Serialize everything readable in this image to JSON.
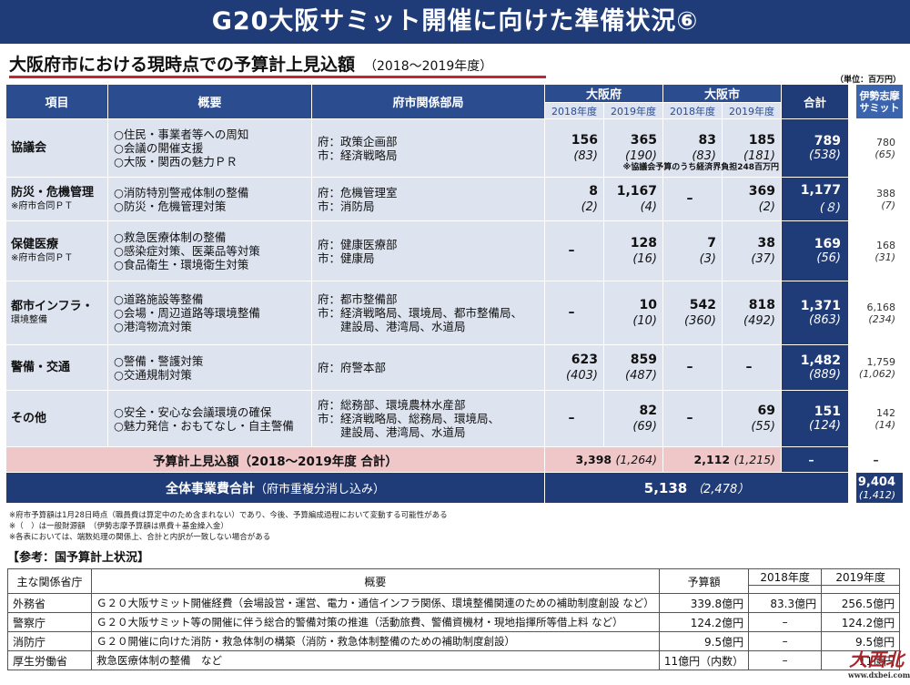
{
  "title": "G20大阪サミット開催に向けた準備状況⑥",
  "subtitle": "大阪府市における現時点での予算計上見込額",
  "period": "（2018～2019年度）",
  "unit": "（単位：百万円）",
  "headers": {
    "item": "項目",
    "overview": "概要",
    "dept": "府市関係部局",
    "pref": "大阪府",
    "city": "大阪市",
    "total": "合計",
    "ise_line1": "伊勢志摩",
    "ise_line2": "サミット",
    "y2018": "2018年度",
    "y2019": "2019年度"
  },
  "rows": [
    {
      "item": "協議会",
      "note": "",
      "desc": [
        "○住民・事業者等への周知",
        "○会議の開催支援",
        "○大阪・関西の魅力ＰＲ"
      ],
      "dept": [
        "府：政策企画部",
        "市：経済戦略局"
      ],
      "p18": "156",
      "p18s": "(83)",
      "p19": "365",
      "p19s": "(190)",
      "c18": "83",
      "c18s": "(83)",
      "c19": "185",
      "c19s": "(181)",
      "tot": "789",
      "tots": "(538)",
      "ise": "780",
      "ises": "(65)",
      "extra": "※協議会予算のうち経済界負担248百万円"
    },
    {
      "item": "防災・危機管理",
      "note": "※府市合同ＰＴ",
      "desc": [
        "○消防特別警戒体制の整備",
        "○防災・危機管理対策"
      ],
      "dept": [
        "府：危機管理室",
        "市：消防局"
      ],
      "p18": "8",
      "p18s": "(2)",
      "p19": "1,167",
      "p19s": "(4)",
      "c18": "–",
      "c18s": "",
      "c19": "369",
      "c19s": "(2)",
      "tot": "1,177",
      "tots": "(８)",
      "ise": "388",
      "ises": "(7)",
      "extra": ""
    },
    {
      "item": "保健医療",
      "note": "※府市合同ＰＴ",
      "desc": [
        "○救急医療体制の整備",
        "○感染症対策、医薬品等対策",
        "○食品衛生・環境衛生対策"
      ],
      "dept": [
        "府：健康医療部",
        "市：健康局"
      ],
      "p18": "–",
      "p18s": "",
      "p19": "128",
      "p19s": "(16)",
      "c18": "7",
      "c18s": "(3)",
      "c19": "38",
      "c19s": "(37)",
      "tot": "169",
      "tots": "(56)",
      "ise": "168",
      "ises": "(31)",
      "extra": ""
    },
    {
      "item": "都市インフラ・",
      "note": "環境整備",
      "desc": [
        "○道路施設等整備",
        "○会場・周辺道路等環境整備",
        "○港湾物流対策"
      ],
      "dept": [
        "府：都市整備部",
        "市：経済戦略局、環境局、都市整備局、",
        "　　建設局、港湾局、水道局"
      ],
      "p18": "–",
      "p18s": "",
      "p19": "10",
      "p19s": "(10)",
      "c18": "542",
      "c18s": "(360)",
      "c19": "818",
      "c19s": "(492)",
      "tot": "1,371",
      "tots": "(863)",
      "ise": "6,168",
      "ises": "(234)",
      "extra": ""
    },
    {
      "item": "警備・交通",
      "note": "",
      "desc": [
        "○警備・警護対策",
        "○交通規制対策"
      ],
      "dept": [
        "府：府警本部"
      ],
      "p18": "623",
      "p18s": "(403)",
      "p19": "859",
      "p19s": "(487)",
      "c18": "–",
      "c18s": "",
      "c19": "–",
      "c19s": "",
      "tot": "1,482",
      "tots": "(889)",
      "ise": "1,759",
      "ises": "(1,062)",
      "extra": ""
    },
    {
      "item": "その他",
      "note": "",
      "desc": [
        "○安全・安心な会議環境の確保",
        "○魅力発信・おもてなし・自主警備"
      ],
      "dept": [
        "府：総務部、環境農林水産部",
        "市：経済戦略局、総務局、環境局、",
        "　　建設局、港湾局、水道局"
      ],
      "p18": "–",
      "p18s": "",
      "p19": "82",
      "p19s": "(69)",
      "c18": "–",
      "c18s": "",
      "c19": "69",
      "c19s": "(55)",
      "tot": "151",
      "tots": "(124)",
      "ise": "142",
      "ises": "(14)",
      "extra": ""
    }
  ],
  "budget_row": {
    "label": "予算計上見込額（2018～2019年度 合計）",
    "pref": "3,398",
    "pref_sub": "(1,264)",
    "city": "2,112",
    "city_sub": "(1,215)",
    "tot": "–",
    "ise": "–"
  },
  "grand_row": {
    "label": "全体事業費合計",
    "label_sub": "（府市重複分消し込み）",
    "value": "5,138",
    "value_sub": "（2,478）",
    "ise": "9,404",
    "ise_sub": "(1,412)"
  },
  "footnotes": [
    "※府市予算額は1月28日時点（職員費は算定中のため含まれない）であり、今後、予算編成過程において変動する可能性がある",
    "※（　）は一般財源額　（伊勢志摩予算額は県費＋基金繰入金）",
    "※各表においては、端数処理の関係上、合計と内訳が一致しない場合がある"
  ],
  "ref_title": "【参考：国予算計上状況】",
  "ref_headers": {
    "ministry": "主な関係省庁",
    "overview": "概要",
    "amount": "予算額",
    "y2018": "2018年度",
    "y2019": "2019年度"
  },
  "ref_rows": [
    {
      "ministry": "外務省",
      "overview": "Ｇ２０大阪サミット開催経費（会場設営・運営、電力・通信インフラ関係、環境整備関連のための補助制度創設 など）",
      "amount": "339.8億円",
      "y2018": "83.3億円",
      "y2019": "256.5億円"
    },
    {
      "ministry": "警察庁",
      "overview": "Ｇ２０大阪サミット等の開催に伴う総合的警備対策の推進（活動旅費、警備資機材・現地指揮所等借上料 など）",
      "amount": "124.2億円",
      "y2018": "–",
      "y2019": "124.2億円"
    },
    {
      "ministry": "消防庁",
      "overview": "Ｇ２０開催に向けた消防・救急体制の構築（消防・救急体制整備のための補助制度創設）",
      "amount": "9.5億円",
      "y2018": "–",
      "y2019": "9.5億円"
    },
    {
      "ministry": "厚生労働省",
      "overview": "救急医療体制の整備　など",
      "amount": "11億円（内数）",
      "y2018": "–",
      "y2019": "11億円"
    }
  ],
  "logo": {
    "text": "大西北",
    "url": "www.dxbei.com"
  }
}
